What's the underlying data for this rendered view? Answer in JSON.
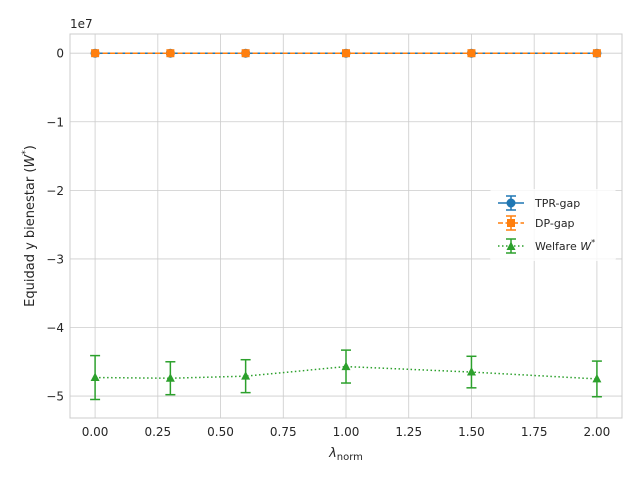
{
  "chart_data": {
    "type": "line",
    "xlabel_main": "λ",
    "xlabel_sub": "norm",
    "ylabel_main": "Equidad y bienestar (",
    "ylabel_var": "W",
    "ylabel_sup": "*",
    "ylabel_end": ")",
    "y_offset_label": "1e7",
    "xlim": [
      -0.1,
      2.1
    ],
    "ylim": [
      -5.32,
      0.28
    ],
    "y_scale": 10000000,
    "x_ticks": [
      0.0,
      0.25,
      0.5,
      0.75,
      1.0,
      1.25,
      1.5,
      1.75,
      2.0
    ],
    "x_tick_labels": [
      "0.00",
      "0.25",
      "0.50",
      "0.75",
      "1.00",
      "1.25",
      "1.50",
      "1.75",
      "2.00"
    ],
    "y_ticks": [
      0,
      -1,
      -2,
      -3,
      -4,
      -5
    ],
    "y_tick_labels": [
      "0",
      "−1",
      "−2",
      "−3",
      "−4",
      "−5"
    ],
    "grid": true,
    "legend_position": "center-right",
    "x": [
      0.0,
      0.3,
      0.6,
      1.0,
      1.5,
      2.0
    ],
    "series": [
      {
        "name": "TPR-gap",
        "color": "#1f77b4",
        "marker": "circle",
        "linestyle": "solid",
        "values": [
          0,
          0,
          0,
          0,
          0,
          0
        ],
        "errors": [
          0,
          0,
          0,
          0,
          0,
          0
        ]
      },
      {
        "name": "DP-gap",
        "color": "#ff7f0e",
        "marker": "square",
        "linestyle": "dashed",
        "values": [
          0,
          0,
          0,
          0,
          0,
          0
        ],
        "errors": [
          0,
          0,
          0,
          0,
          0,
          0
        ]
      },
      {
        "name": "Welfare",
        "name_var": "W",
        "name_sup": "*",
        "color": "#2ca02c",
        "marker": "triangle",
        "linestyle": "dotted",
        "values": [
          -4.73,
          -4.74,
          -4.71,
          -4.57,
          -4.65,
          -4.75
        ],
        "errors": [
          0.32,
          0.24,
          0.24,
          0.24,
          0.23,
          0.26
        ]
      }
    ]
  }
}
